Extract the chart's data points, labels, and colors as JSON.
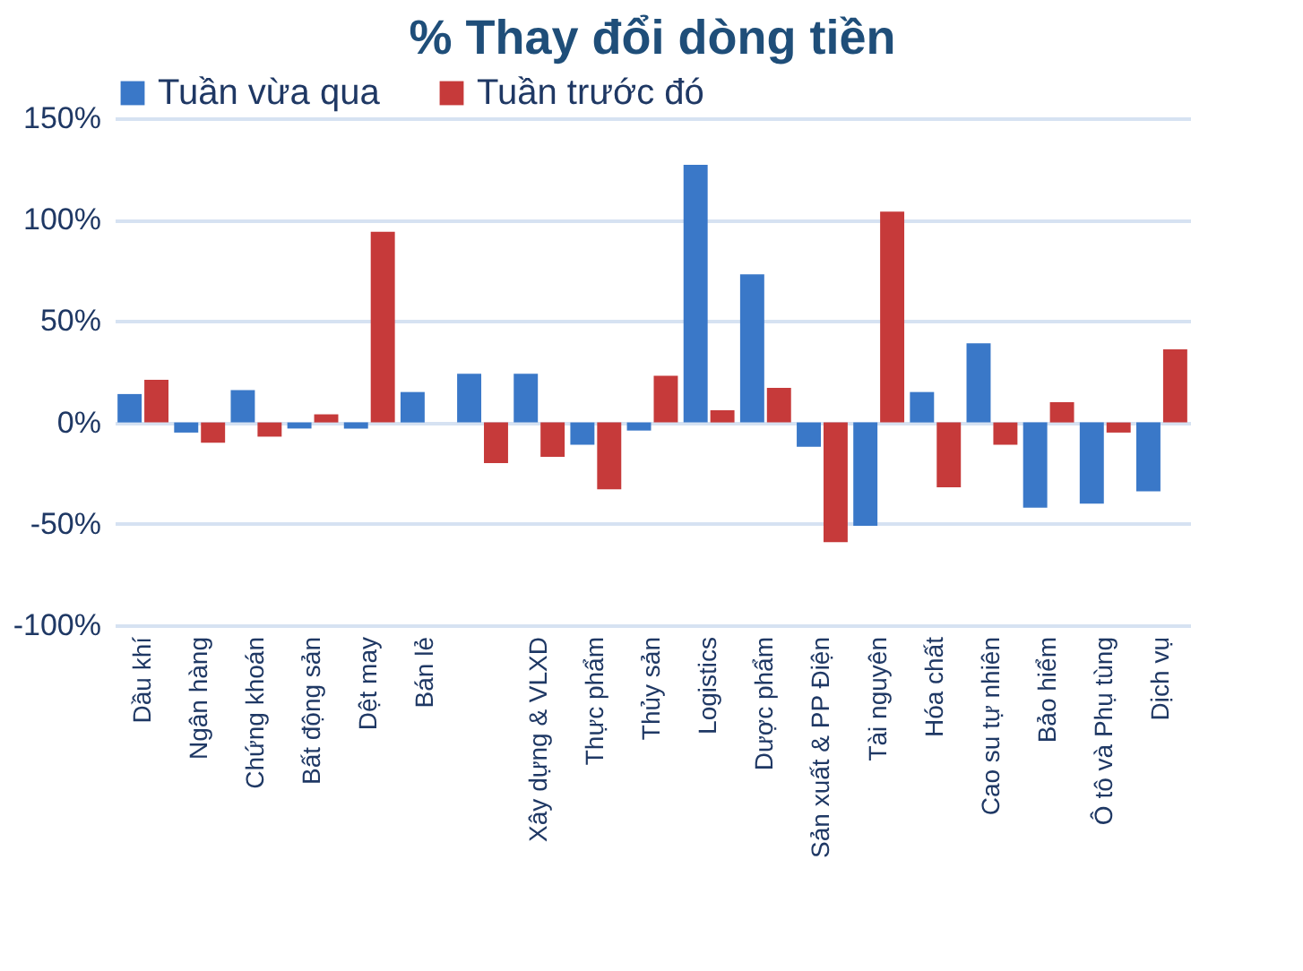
{
  "chart_data": {
    "type": "bar",
    "title": "% Thay đổi dòng tiền",
    "categories": [
      "Dầu khí",
      "Ngân hàng",
      "Chứng khoán",
      "Bất động sản",
      "Dệt may",
      "Bán lẻ",
      null,
      "Xây dựng & VLXD",
      "Thực phẩm",
      "Thủy sản",
      "Logistics",
      "Dược phẩm",
      "Sản xuất & PP Điện",
      "Tài nguyên",
      "Hóa chất",
      "Cao su tự nhiên",
      "Bảo hiểm",
      "Ô tô và Phụ tùng",
      "Dịch vụ"
    ],
    "series": [
      {
        "name": "Tuần vừa qua",
        "color": "#3a78c8",
        "values": [
          14,
          -5,
          16,
          -3,
          -3,
          15,
          24,
          24,
          -11,
          -4,
          127,
          73,
          -12,
          -51,
          15,
          39,
          -42,
          -40,
          -34
        ]
      },
      {
        "name": "Tuần trước đó",
        "color": "#c63a3a",
        "values": [
          21,
          -10,
          -7,
          4,
          94,
          0,
          -20,
          -17,
          -33,
          23,
          6,
          17,
          -59,
          104,
          -32,
          -11,
          10,
          -5,
          36
        ]
      }
    ],
    "ylim": [
      -100,
      150
    ],
    "yticks": [
      {
        "value": -100,
        "label": "-100%"
      },
      {
        "value": -50,
        "label": "-50%"
      },
      {
        "value": 0,
        "label": "0%"
      },
      {
        "value": 50,
        "label": "50%"
      },
      {
        "value": 100,
        "label": "100%"
      },
      {
        "value": 150,
        "label": "150%"
      }
    ],
    "grid": "y",
    "legend": "top"
  }
}
